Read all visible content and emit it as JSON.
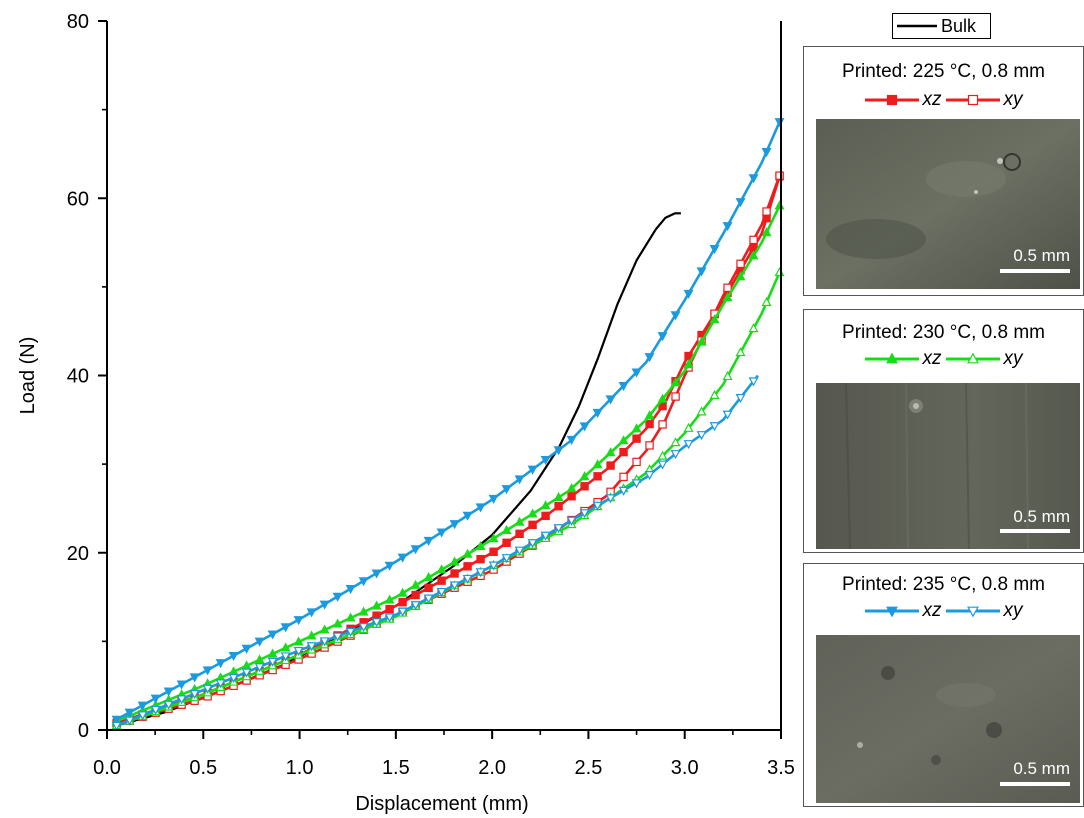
{
  "chart_data": {
    "type": "line",
    "xlabel": "Displacement (mm)",
    "ylabel": "Load (N)",
    "xlim": [
      0,
      3.5
    ],
    "ylim": [
      0,
      80
    ],
    "xticks": [
      "0.0",
      "0.5",
      "1.0",
      "1.5",
      "2.0",
      "2.5",
      "3.0",
      "3.5"
    ],
    "yticks": [
      "0",
      "20",
      "40",
      "60",
      "80"
    ],
    "grid": false,
    "series": [
      {
        "name": "Bulk",
        "color": "#000000",
        "marker": "none",
        "fill": "none",
        "x": [
          0.05,
          0.3,
          0.6,
          0.9,
          1.2,
          1.5,
          1.8,
          2.0,
          2.2,
          2.35,
          2.45,
          2.55,
          2.65,
          2.75,
          2.85,
          2.9,
          2.95,
          2.98
        ],
        "y": [
          0.5,
          2.0,
          4.5,
          7.2,
          10.5,
          14.0,
          18.5,
          22.0,
          27.0,
          32.0,
          36.5,
          42.0,
          48.0,
          53.0,
          56.5,
          57.8,
          58.3,
          58.3
        ]
      },
      {
        "name": "xz",
        "group": "225 °C",
        "color": "#ee1c1c",
        "marker": "square",
        "fill": "filled",
        "x": [
          0.05,
          0.5,
          1.0,
          1.5,
          2.0,
          2.3,
          2.6,
          2.8,
          2.9,
          3.0,
          3.2,
          3.4,
          3.5
        ],
        "y": [
          0.8,
          4.0,
          8.5,
          14.0,
          20.0,
          24.5,
          29.5,
          34.0,
          37.0,
          41.5,
          48.5,
          56.0,
          63.0
        ]
      },
      {
        "name": "xy",
        "group": "225 °C",
        "color": "#ee1c1c",
        "marker": "square",
        "fill": "open",
        "x": [
          0.05,
          0.5,
          1.0,
          1.5,
          2.0,
          2.3,
          2.6,
          2.8,
          2.9,
          3.0,
          3.2,
          3.4,
          3.5
        ],
        "y": [
          0.6,
          3.6,
          8.0,
          13.0,
          18.0,
          22.0,
          26.5,
          31.5,
          35.0,
          40.0,
          49.0,
          57.0,
          63.0
        ]
      },
      {
        "name": "xz",
        "group": "230 °C",
        "color": "#19dc19",
        "marker": "triangle-up",
        "fill": "filled",
        "x": [
          0.05,
          0.5,
          1.0,
          1.5,
          2.0,
          2.4,
          2.8,
          3.0,
          3.2,
          3.4,
          3.5
        ],
        "y": [
          1.0,
          5.0,
          10.0,
          15.0,
          21.5,
          27.0,
          35.0,
          40.5,
          48.0,
          55.0,
          59.5
        ]
      },
      {
        "name": "xy",
        "group": "230 °C",
        "color": "#19dc19",
        "marker": "triangle-up",
        "fill": "open",
        "x": [
          0.05,
          0.5,
          1.0,
          1.5,
          2.0,
          2.4,
          2.8,
          3.0,
          3.2,
          3.4,
          3.5
        ],
        "y": [
          0.5,
          4.0,
          8.5,
          12.8,
          18.5,
          23.0,
          29.0,
          33.5,
          39.0,
          47.0,
          52.0
        ]
      },
      {
        "name": "xz",
        "group": "235 °C",
        "color": "#1a9be0",
        "marker": "triangle-down",
        "fill": "filled",
        "x": [
          0.05,
          0.5,
          1.0,
          1.5,
          2.0,
          2.4,
          2.8,
          3.0,
          3.2,
          3.4,
          3.5
        ],
        "y": [
          1.2,
          6.5,
          12.5,
          19.0,
          26.0,
          32.5,
          41.5,
          48.5,
          56.0,
          64.0,
          69.0
        ]
      },
      {
        "name": "xy",
        "group": "235 °C",
        "color": "#1a9be0",
        "marker": "triangle-down",
        "fill": "open",
        "x": [
          0.05,
          0.5,
          1.0,
          1.5,
          2.0,
          2.4,
          2.8,
          3.0,
          3.2,
          3.38
        ],
        "y": [
          0.5,
          4.5,
          9.0,
          13.0,
          18.5,
          23.5,
          28.5,
          32.0,
          35.0,
          40.0
        ]
      }
    ]
  },
  "legend": {
    "bulk_label": "Bulk",
    "bulk_color": "#000000"
  },
  "panels": [
    {
      "title": "Printed: 225 °C, 0.8 mm",
      "xz_label": "xz",
      "xy_label": "xy",
      "color": "#ee1c1c",
      "marker": "square",
      "scale_label": "0.5 mm"
    },
    {
      "title": "Printed: 230 °C, 0.8 mm",
      "xz_label": "xz",
      "xy_label": "xy",
      "color": "#19dc19",
      "marker": "triangle-up",
      "scale_label": "0.5 mm"
    },
    {
      "title": "Printed: 235 °C, 0.8 mm",
      "xz_label": "xz",
      "xy_label": "xy",
      "color": "#1a9be0",
      "marker": "triangle-down",
      "scale_label": "0.5 mm"
    }
  ]
}
